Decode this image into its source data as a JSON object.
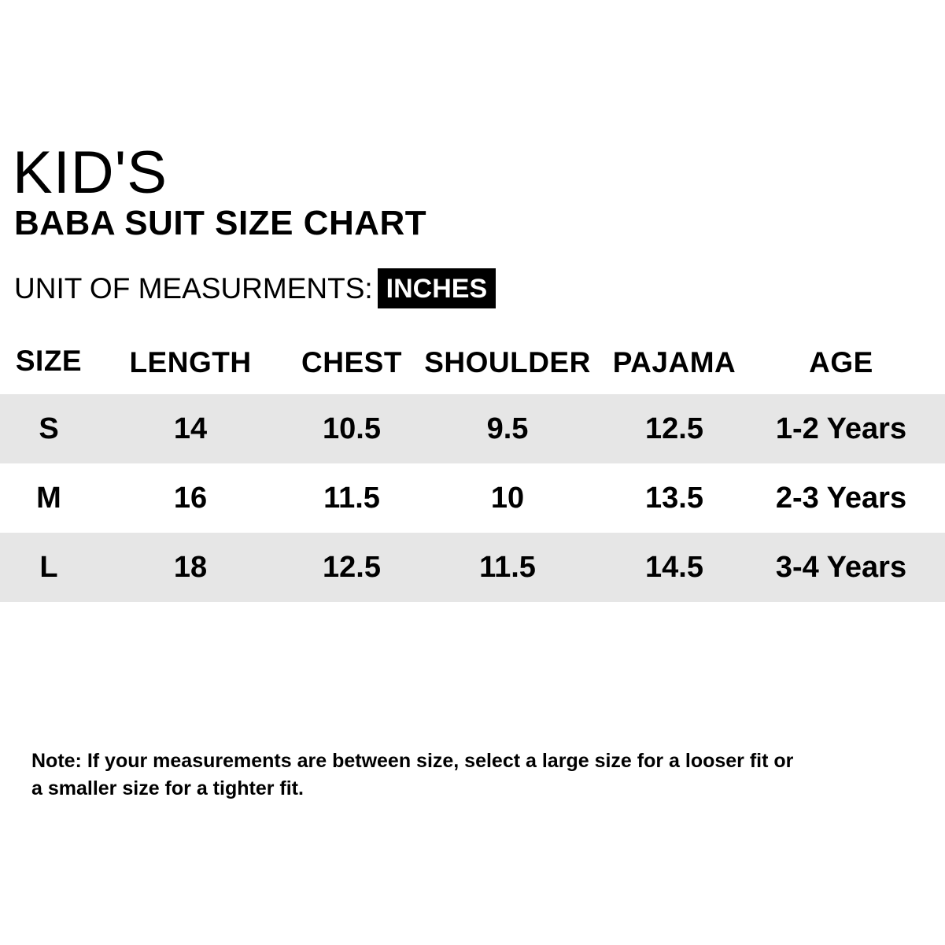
{
  "title": {
    "main": "KID'S",
    "sub": "BABA SUIT SIZE CHART"
  },
  "unit": {
    "label": "UNIT OF MEASURMENTS:",
    "value": "INCHES"
  },
  "table": {
    "headers": [
      "SIZE",
      "LENGTH",
      "CHEST",
      "SHOULDER",
      "PAJAMA",
      "AGE"
    ],
    "rows": [
      [
        "S",
        "14",
        "10.5",
        "9.5",
        "12.5",
        "1-2 Years"
      ],
      [
        "M",
        "16",
        "11.5",
        "10",
        "13.5",
        "2-3 Years"
      ],
      [
        "L",
        "18",
        "12.5",
        "11.5",
        "14.5",
        "3-4 Years"
      ]
    ]
  },
  "note": {
    "line1": "Note: If your measurements are between size, select a large size for a looser fit or",
    "line2": "a smaller size for a tighter fit."
  },
  "colors": {
    "row_shade": "#e6e6e6",
    "badge_bg": "#000000",
    "badge_text": "#ffffff"
  }
}
